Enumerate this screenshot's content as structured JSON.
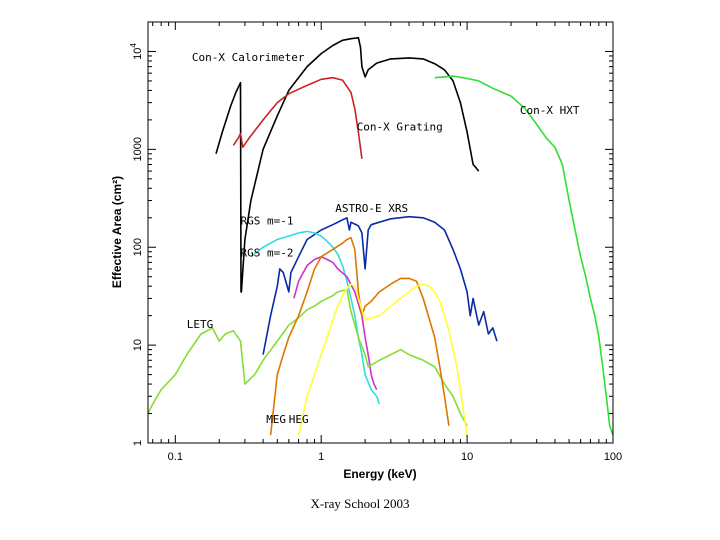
{
  "caption": "X-ray School 2003",
  "chart_data": {
    "type": "line",
    "title": "",
    "xlabel": "Energy (keV)",
    "ylabel": "Effective Area (cm²)",
    "x_scale": "log",
    "y_scale": "log",
    "xlim": [
      0.065,
      100
    ],
    "ylim": [
      1,
      20000
    ],
    "x_ticks": [
      {
        "v": 0.1,
        "label": "0.1"
      },
      {
        "v": 1,
        "label": "1"
      },
      {
        "v": 10,
        "label": "10"
      },
      {
        "v": 100,
        "label": "100"
      }
    ],
    "y_ticks": [
      {
        "v": 1,
        "label": "1"
      },
      {
        "v": 10,
        "label": "10"
      },
      {
        "v": 100,
        "label": "100"
      },
      {
        "v": 1000,
        "label": "1000"
      },
      {
        "v": 10000,
        "label": "10",
        "exp": "4"
      }
    ],
    "grid": false,
    "series": [
      {
        "name": "Con-X Calorimeter",
        "color": "#000000",
        "x": [
          0.19,
          0.21,
          0.24,
          0.26,
          0.28,
          0.282,
          0.284,
          0.3,
          0.33,
          0.4,
          0.5,
          0.6,
          0.8,
          1.0,
          1.2,
          1.4,
          1.6,
          1.8,
          1.86,
          1.9,
          2.0,
          2.1,
          2.4,
          3.0,
          4.0,
          5.0,
          6.0,
          7.0,
          8.0,
          9.0,
          10.0,
          11.0,
          11.5,
          12.0
        ],
        "y": [
          900,
          1500,
          2800,
          3800,
          4800,
          35,
          35,
          120,
          300,
          1000,
          2200,
          4000,
          7000,
          9500,
          11500,
          13000,
          13500,
          13800,
          11000,
          7000,
          5500,
          6500,
          7600,
          8400,
          8600,
          8400,
          7500,
          6500,
          5000,
          3000,
          1500,
          700,
          650,
          600
        ]
      },
      {
        "name": "Con-X Grating",
        "color": "#cc2222",
        "x": [
          0.25,
          0.27,
          0.28,
          0.29,
          0.32,
          0.4,
          0.5,
          0.6,
          0.8,
          1.0,
          1.2,
          1.4,
          1.6,
          1.7,
          1.8,
          1.9
        ],
        "y": [
          1100,
          1300,
          1450,
          1050,
          1300,
          2000,
          3000,
          3700,
          4500,
          5200,
          5400,
          5100,
          3800,
          2600,
          1500,
          800
        ]
      },
      {
        "name": "Con-X HXT",
        "color": "#33dd33",
        "x": [
          6.0,
          7.0,
          8.0,
          10.0,
          12.0,
          15.0,
          20.0,
          25.0,
          30.0,
          35.0,
          40.0,
          45.0,
          50.0,
          55.0,
          60.0,
          65.0,
          70.0,
          75.0,
          80.0,
          85.0,
          90.0,
          95.0,
          100.0
        ],
        "y": [
          5400,
          5500,
          5600,
          5300,
          5000,
          4200,
          3500,
          2600,
          1800,
          1300,
          1050,
          700,
          300,
          150,
          80,
          50,
          30,
          20,
          12,
          6,
          3,
          1.5,
          1.2
        ]
      },
      {
        "name": "ASTRO-E XRS",
        "color": "#0a2aa8",
        "x": [
          0.4,
          0.45,
          0.5,
          0.52,
          0.55,
          0.6,
          0.62,
          0.7,
          0.8,
          1.0,
          1.2,
          1.4,
          1.5,
          1.56,
          1.6,
          1.8,
          1.9,
          2.0,
          2.1,
          2.2,
          2.5,
          3.0,
          4.0,
          5.0,
          6.0,
          7.0,
          8.0,
          9.0,
          10.0,
          10.5,
          11.0,
          12.0,
          13.0,
          14.0,
          15.0,
          16.0
        ],
        "y": [
          8,
          20,
          40,
          60,
          55,
          35,
          55,
          80,
          120,
          150,
          170,
          190,
          200,
          150,
          180,
          165,
          140,
          60,
          150,
          170,
          180,
          195,
          205,
          200,
          180,
          150,
          95,
          60,
          35,
          20,
          30,
          16,
          22,
          13,
          15,
          11
        ]
      },
      {
        "name": "RGS m=-1",
        "color": "#33dddd",
        "x": [
          0.33,
          0.4,
          0.5,
          0.6,
          0.7,
          0.8,
          0.9,
          1.0,
          1.1,
          1.2,
          1.3,
          1.4,
          1.5,
          1.6,
          1.7,
          1.8,
          1.9,
          2.0,
          2.2,
          2.4,
          2.5
        ],
        "y": [
          80,
          100,
          120,
          130,
          140,
          145,
          140,
          130,
          115,
          100,
          85,
          65,
          45,
          30,
          20,
          12,
          8,
          5,
          3.5,
          3,
          2.5
        ]
      },
      {
        "name": "RGS m=-2",
        "color": "#cc33cc",
        "x": [
          0.65,
          0.7,
          0.8,
          0.9,
          1.0,
          1.1,
          1.2,
          1.3,
          1.5,
          1.7,
          1.9,
          2.0,
          2.1,
          2.2,
          2.3,
          2.4
        ],
        "y": [
          30,
          45,
          65,
          75,
          80,
          75,
          70,
          60,
          50,
          35,
          20,
          12,
          8,
          5,
          4,
          3.5
        ]
      },
      {
        "name": "LETG",
        "color": "#88dd33",
        "x": [
          0.065,
          0.07,
          0.08,
          0.1,
          0.12,
          0.15,
          0.18,
          0.2,
          0.22,
          0.25,
          0.28,
          0.3,
          0.35,
          0.4,
          0.5,
          0.6,
          0.7,
          0.8,
          0.9,
          1.0,
          1.2,
          1.3,
          1.5,
          1.6,
          1.8,
          2.0,
          2.1,
          2.5,
          3.0,
          3.5,
          4.0,
          5.0,
          6.0,
          7.0,
          8.0,
          9.0,
          10.0
        ],
        "y": [
          2,
          2.5,
          3.5,
          5,
          8,
          13,
          15,
          11,
          13,
          14,
          11,
          4,
          5,
          7,
          11,
          16,
          19,
          23,
          25,
          28,
          32,
          35,
          37,
          22,
          12,
          8,
          6,
          7,
          8,
          9,
          8,
          7,
          6,
          4,
          3,
          2,
          1.5
        ]
      },
      {
        "name": "MEG",
        "color": "#dd7700",
        "x": [
          0.45,
          0.5,
          0.55,
          0.6,
          0.7,
          0.8,
          0.9,
          1.0,
          1.2,
          1.4,
          1.5,
          1.6,
          1.7,
          1.8,
          1.9,
          2.0,
          2.2,
          2.5,
          3.0,
          3.5,
          4.0,
          4.5,
          5.0,
          6.0,
          6.5,
          7.0,
          7.5
        ],
        "y": [
          1.2,
          5,
          8,
          12,
          20,
          35,
          60,
          80,
          95,
          110,
          120,
          125,
          95,
          35,
          20,
          25,
          28,
          35,
          42,
          48,
          48,
          45,
          30,
          12,
          6,
          3,
          1.5
        ]
      },
      {
        "name": "HEG",
        "color": "#ffff33",
        "x": [
          0.7,
          0.8,
          0.9,
          1.0,
          1.1,
          1.2,
          1.3,
          1.4,
          1.5,
          1.6,
          1.7,
          1.8,
          2.0,
          2.5,
          3.0,
          3.5,
          4.0,
          4.5,
          5.0,
          5.5,
          6.0,
          6.5,
          7.0,
          7.5,
          8.0,
          8.5,
          9.0,
          9.5,
          10.0
        ],
        "y": [
          1.2,
          3,
          5,
          8,
          12,
          18,
          25,
          32,
          38,
          42,
          40,
          30,
          18,
          20,
          25,
          30,
          35,
          40,
          42,
          40,
          35,
          28,
          20,
          14,
          9,
          6,
          3.5,
          2,
          1.2
        ]
      }
    ],
    "annotations": [
      {
        "text": "Con-X Calorimeter",
        "x": 0.13,
        "y": 8000
      },
      {
        "text": "Con-X Grating",
        "x": 1.75,
        "y": 1550
      },
      {
        "text": "Con-X HXT",
        "x": 23,
        "y": 2300
      },
      {
        "text": "ASTRO-E XRS",
        "x": 1.25,
        "y": 230
      },
      {
        "text": "RGS m=-1",
        "x": 0.28,
        "y": 170
      },
      {
        "text": "RGS m=-2",
        "x": 0.28,
        "y": 80
      },
      {
        "text": "LETG",
        "x": 0.12,
        "y": 15
      },
      {
        "text": "MEG",
        "x": 0.42,
        "y": 1.6
      },
      {
        "text": "HEG",
        "x": 0.6,
        "y": 1.6
      }
    ]
  }
}
